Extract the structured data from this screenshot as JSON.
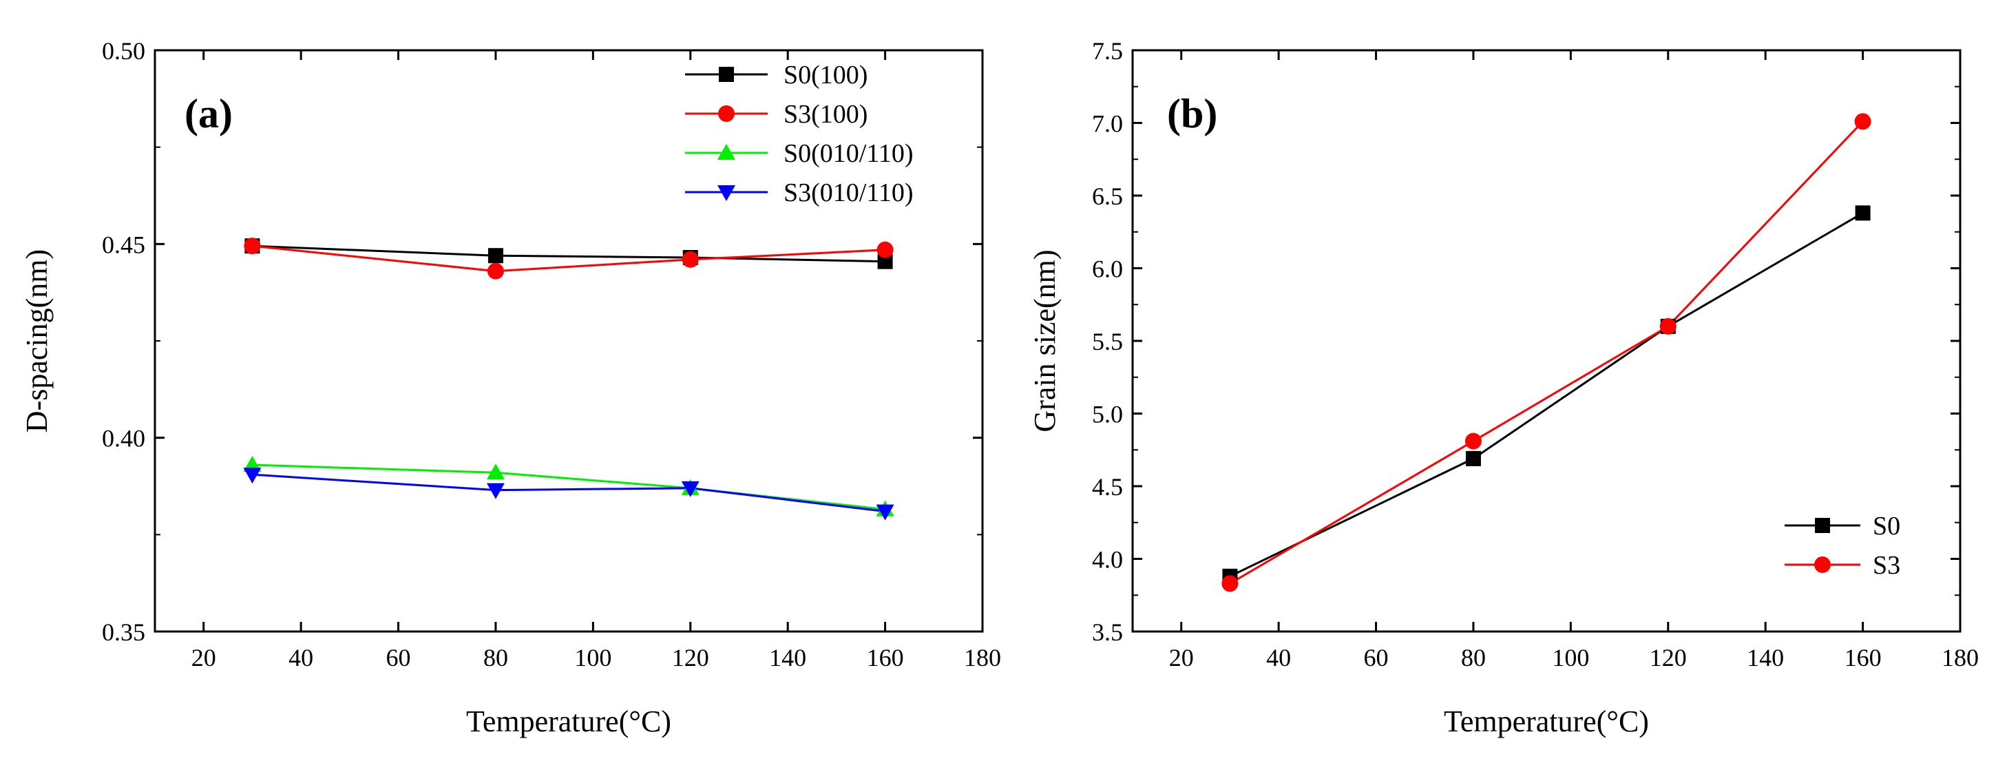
{
  "chart_data": [
    {
      "panel": "(a)",
      "type": "line",
      "xlabel": "Temperature(°C)",
      "ylabel": "D-spacing(nm)",
      "xlim": [
        10,
        180
      ],
      "ylim": [
        0.35,
        0.5
      ],
      "xticks": [
        20,
        40,
        60,
        80,
        100,
        120,
        140,
        160,
        180
      ],
      "yticks": [
        0.35,
        0.4,
        0.45,
        0.5
      ],
      "ytick_labels": [
        "0.35",
        "0.40",
        "0.45",
        "0.50"
      ],
      "legend_position": "top-right",
      "x": [
        30,
        80,
        120,
        160
      ],
      "series": [
        {
          "name": "S0(100)",
          "color": "#000000",
          "marker": "square",
          "values": [
            0.4495,
            0.447,
            0.4465,
            0.4455
          ]
        },
        {
          "name": "S3(100)",
          "color": "#ff0000",
          "marker": "circle",
          "values": [
            0.4495,
            0.443,
            0.446,
            0.4485
          ]
        },
        {
          "name": "S0(010/110)",
          "color": "#00ee00",
          "marker": "triangle-up",
          "values": [
            0.393,
            0.391,
            0.387,
            0.3815
          ]
        },
        {
          "name": "S3(010/110)",
          "color": "#0000ff",
          "marker": "triangle-down",
          "values": [
            0.3905,
            0.3865,
            0.387,
            0.381
          ]
        }
      ]
    },
    {
      "panel": "(b)",
      "type": "line",
      "xlabel": "Temperature(°C)",
      "ylabel": "Grain size(nm)",
      "xlim": [
        10,
        180
      ],
      "ylim": [
        3.5,
        7.5
      ],
      "xticks": [
        20,
        40,
        60,
        80,
        100,
        120,
        140,
        160,
        180
      ],
      "yticks": [
        3.5,
        4.0,
        4.5,
        5.0,
        5.5,
        6.0,
        6.5,
        7.0,
        7.5
      ],
      "ytick_labels": [
        "3.5",
        "4.0",
        "4.5",
        "5.0",
        "5.5",
        "6.0",
        "6.5",
        "7.0",
        "7.5"
      ],
      "legend_position": "bottom-right",
      "x": [
        30,
        80,
        120,
        160
      ],
      "series": [
        {
          "name": "S0",
          "color": "#000000",
          "marker": "square",
          "values": [
            3.88,
            4.69,
            5.6,
            6.38
          ]
        },
        {
          "name": "S3",
          "color": "#ff0000",
          "marker": "circle",
          "values": [
            3.83,
            4.81,
            5.6,
            7.01
          ]
        }
      ]
    }
  ]
}
